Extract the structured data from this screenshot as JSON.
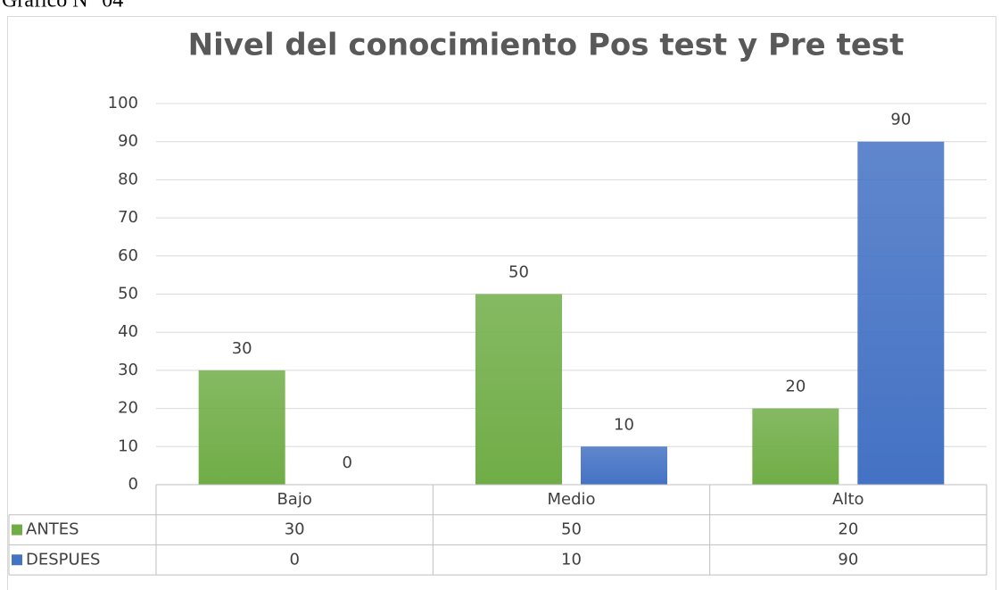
{
  "caption": "Gráfico N° 04",
  "chart_data": {
    "type": "bar",
    "title": "Nivel del conocimiento Pos test y Pre test",
    "categories": [
      "Bajo",
      "Medio",
      "Alto"
    ],
    "series": [
      {
        "name": "ANTES",
        "color": "#70ad47",
        "values": [
          30,
          50,
          20
        ]
      },
      {
        "name": "DESPUES",
        "color": "#4472c4",
        "values": [
          0,
          10,
          90
        ]
      }
    ],
    "ylim": [
      0,
      100
    ],
    "yticks": [
      0,
      10,
      20,
      30,
      40,
      50,
      60,
      70,
      80,
      90,
      100
    ],
    "grid": true,
    "data_labels": true,
    "data_table": true
  }
}
